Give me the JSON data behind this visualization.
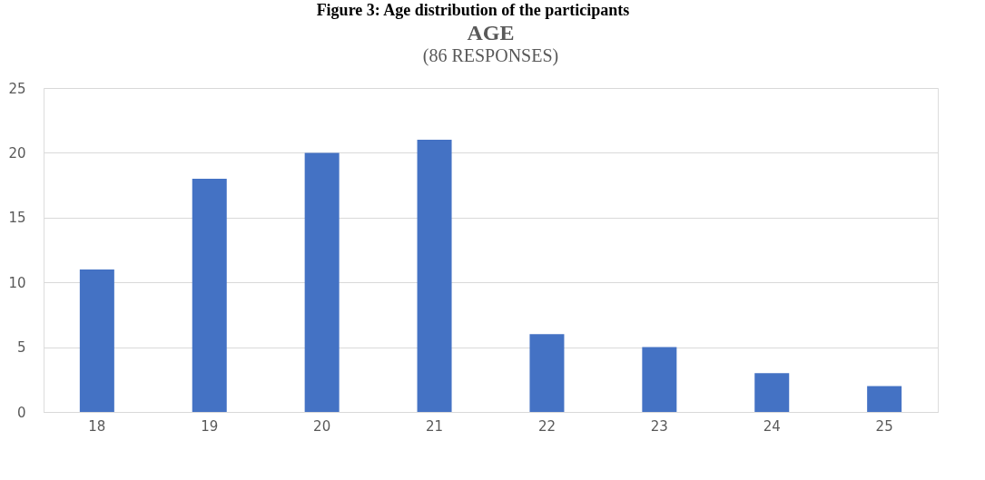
{
  "chart_data": {
    "type": "bar",
    "title": "AGE",
    "subtitle": "(86 RESPONSES)",
    "annotations": [
      "Figure 3: Age distribution of the participants"
    ],
    "categories": [
      "18",
      "19",
      "20",
      "21",
      "22",
      "23",
      "24",
      "25"
    ],
    "values": [
      11,
      18,
      20,
      21,
      6,
      5,
      3,
      2
    ],
    "color": "#4472c4",
    "ylim": [
      0,
      25
    ],
    "yticks": [
      0,
      5,
      10,
      15,
      20,
      25
    ],
    "grid": "y"
  }
}
